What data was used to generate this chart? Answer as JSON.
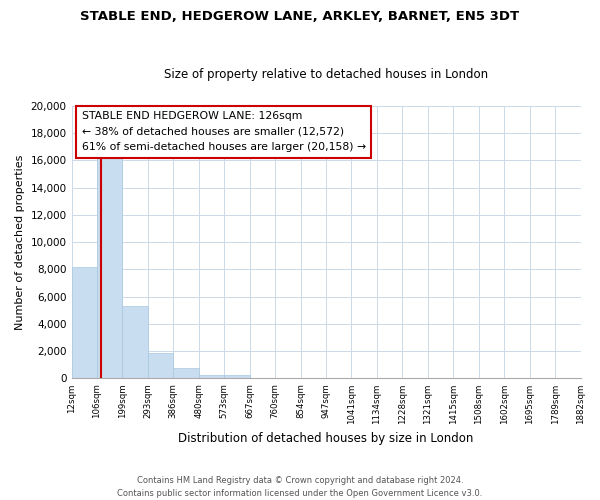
{
  "title": "STABLE END, HEDGEROW LANE, ARKLEY, BARNET, EN5 3DT",
  "subtitle": "Size of property relative to detached houses in London",
  "xlabel": "Distribution of detached houses by size in London",
  "ylabel": "Number of detached properties",
  "bar_values": [
    8200,
    16600,
    5300,
    1850,
    750,
    280,
    270,
    0,
    0,
    0,
    0,
    0,
    0,
    0,
    0,
    0,
    0,
    0,
    0,
    0
  ],
  "bin_labels": [
    "12sqm",
    "106sqm",
    "199sqm",
    "293sqm",
    "386sqm",
    "480sqm",
    "573sqm",
    "667sqm",
    "760sqm",
    "854sqm",
    "947sqm",
    "1041sqm",
    "1134sqm",
    "1228sqm",
    "1321sqm",
    "1415sqm",
    "1508sqm",
    "1602sqm",
    "1695sqm",
    "1789sqm",
    "1882sqm"
  ],
  "bar_color": "#c8ddef",
  "bar_edge_color": "#aac8e0",
  "property_line_color": "#cc0000",
  "property_line_x": 1.15,
  "annotation_box_text": "STABLE END HEDGEROW LANE: 126sqm\n← 38% of detached houses are smaller (12,572)\n61% of semi-detached houses are larger (20,158) →",
  "ylim": [
    0,
    20000
  ],
  "yticks": [
    0,
    2000,
    4000,
    6000,
    8000,
    10000,
    12000,
    14000,
    16000,
    18000,
    20000
  ],
  "footer_line1": "Contains HM Land Registry data © Crown copyright and database right 2024.",
  "footer_line2": "Contains public sector information licensed under the Open Government Licence v3.0.",
  "background_color": "#ffffff",
  "grid_color": "#ccd9e8"
}
